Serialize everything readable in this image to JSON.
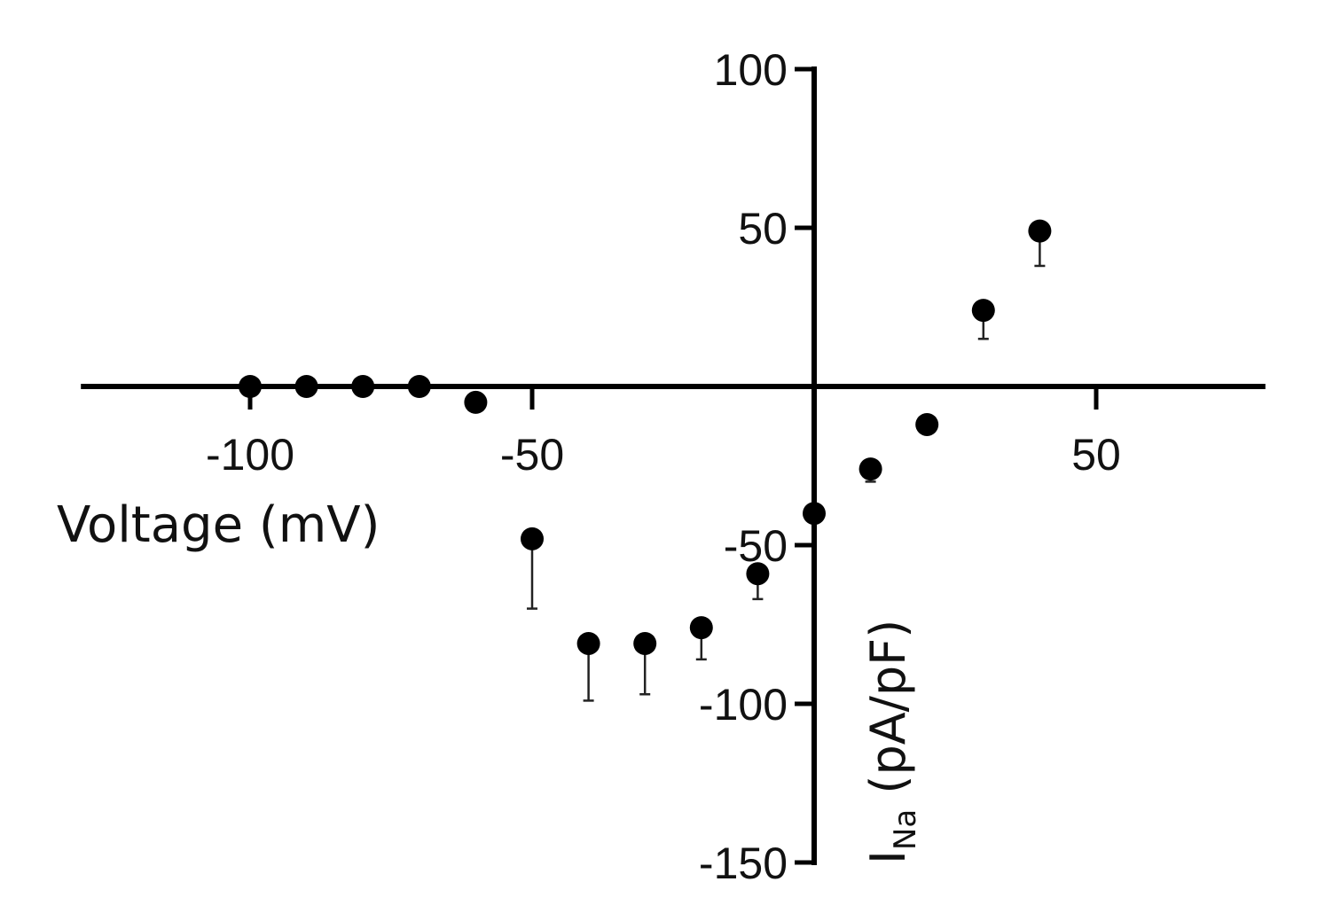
{
  "chart_data": {
    "type": "scatter",
    "xlabel": "Voltage (mV)",
    "ylabel": {
      "main": "I",
      "subscript": "Na",
      "unit": " (pA/pF)"
    },
    "xlim": [
      -130,
      80
    ],
    "ylim": [
      -150,
      100
    ],
    "x_ticks": [
      -100,
      -50,
      50
    ],
    "x_tick_labels": [
      "-100",
      "-50",
      "50"
    ],
    "y_ticks": [
      100,
      50,
      -50,
      -100,
      -150
    ],
    "y_tick_labels": [
      "100",
      "50",
      "-50",
      "-100",
      "-150"
    ],
    "grid": false,
    "marker_color": "#000000",
    "series": [
      {
        "points": [
          {
            "x": -100,
            "y": 0,
            "err": 0
          },
          {
            "x": -90,
            "y": 0,
            "err": 0
          },
          {
            "x": -80,
            "y": 0,
            "err": 0
          },
          {
            "x": -70,
            "y": 0,
            "err": 0
          },
          {
            "x": -60,
            "y": -5,
            "err": 0
          },
          {
            "x": -50,
            "y": -48,
            "err": 22
          },
          {
            "x": -40,
            "y": -81,
            "err": 18
          },
          {
            "x": -30,
            "y": -81,
            "err": 16
          },
          {
            "x": -20,
            "y": -76,
            "err": 10
          },
          {
            "x": -10,
            "y": -59,
            "err": 8
          },
          {
            "x": 0,
            "y": -40,
            "err": 0
          },
          {
            "x": 10,
            "y": -26,
            "err": 4
          },
          {
            "x": 20,
            "y": -12,
            "err": 0
          },
          {
            "x": 30,
            "y": 24,
            "err": 9
          },
          {
            "x": 40,
            "y": 49,
            "err": 11
          }
        ]
      }
    ]
  }
}
